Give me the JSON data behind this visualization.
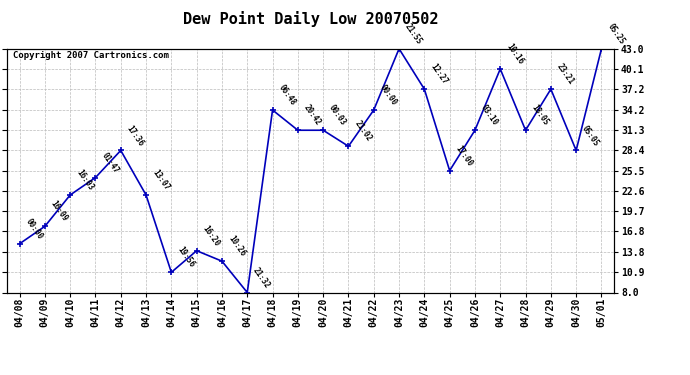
{
  "title": "Dew Point Daily Low 20070502",
  "copyright": "Copyright 2007 Cartronics.com",
  "x_labels": [
    "04/08",
    "04/09",
    "04/10",
    "04/11",
    "04/12",
    "04/13",
    "04/14",
    "04/15",
    "04/16",
    "04/17",
    "04/18",
    "04/19",
    "04/20",
    "04/21",
    "04/22",
    "04/23",
    "04/24",
    "04/25",
    "04/26",
    "04/27",
    "04/28",
    "04/29",
    "04/30",
    "05/01"
  ],
  "y_values": [
    15.0,
    17.5,
    22.0,
    24.5,
    28.4,
    22.0,
    10.9,
    14.0,
    12.5,
    8.0,
    34.2,
    31.3,
    31.3,
    29.0,
    34.2,
    43.0,
    37.2,
    25.5,
    31.3,
    40.1,
    31.3,
    37.2,
    28.4,
    43.0
  ],
  "point_labels": [
    "00:00",
    "16:09",
    "16:03",
    "01:47",
    "17:36",
    "13:07",
    "19:56",
    "16:20",
    "10:26",
    "21:32",
    "06:48",
    "20:42",
    "00:03",
    "21:02",
    "00:00",
    "21:55",
    "12:27",
    "17:00",
    "03:10",
    "10:16",
    "18:05",
    "23:21",
    "05:05",
    "05:25"
  ],
  "ylim": [
    8.0,
    43.0
  ],
  "yticks": [
    8.0,
    10.9,
    13.8,
    16.8,
    19.7,
    22.6,
    25.5,
    28.4,
    31.3,
    34.2,
    37.2,
    40.1,
    43.0
  ],
  "line_color": "#0000bb",
  "marker_color": "#0000bb",
  "background_color": "#ffffff",
  "grid_color": "#bbbbbb",
  "title_fontsize": 11,
  "tick_fontsize": 7,
  "point_label_fontsize": 5.5
}
